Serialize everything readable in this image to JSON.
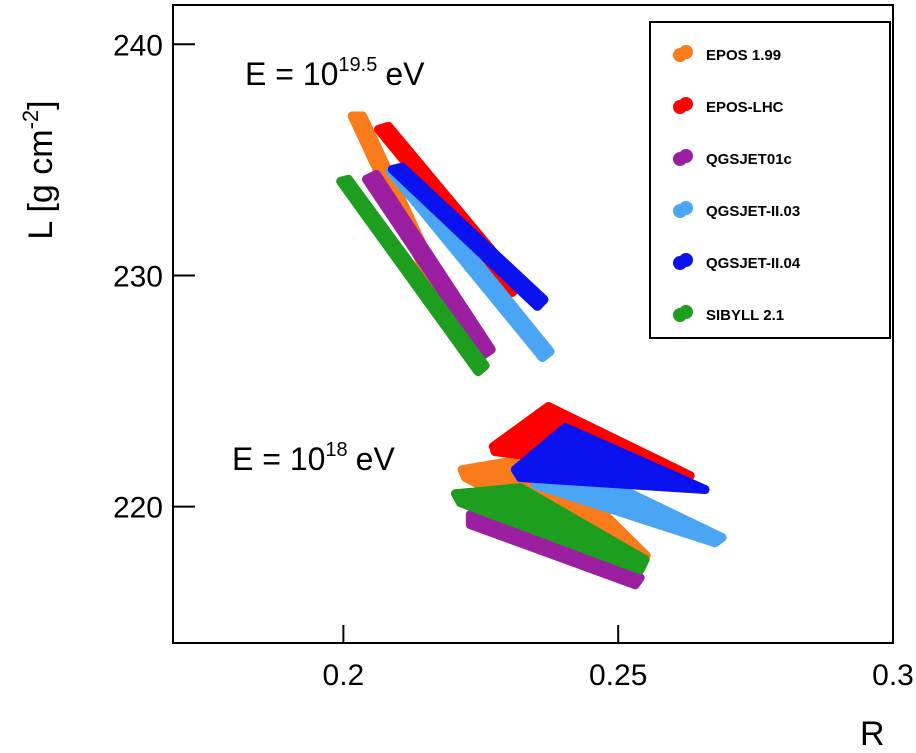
{
  "chart_data": {
    "type": "polygon",
    "x_label": "R",
    "y_label": [
      "L [g cm",
      "-2",
      "]"
    ],
    "annotations": [
      [
        "E = 10",
        "19.5",
        "eV"
      ],
      [
        "E = 10",
        "18",
        "eV"
      ]
    ],
    "xlim": [
      0.169,
      0.3
    ],
    "xticks": [
      0.2,
      0.25,
      0.3
    ],
    "ylim": [
      214.1,
      241.7
    ],
    "yticks": [
      220,
      230,
      240
    ],
    "legend": "top-right",
    "series": [
      {
        "name": "EPOS 1.99",
        "color": "#f97b1c",
        "bands": [
          {
            "x": [
              0.2016,
              0.2035,
              0.2215,
              0.2204
            ],
            "y": [
              236.9,
              236.9,
              227.7,
              227.3
            ]
          },
          {
            "x": [
              0.2216,
              0.2367,
              0.2551,
              0.2533,
              0.2222
            ],
            "y": [
              221.6,
              222.21,
              217.88,
              217.45,
              221.26
            ]
          }
        ]
      },
      {
        "name": "EPOS-LHC",
        "color": "#ff0000",
        "bands": [
          {
            "x": [
              0.2064,
              0.2082,
              0.2322,
              0.2307
            ],
            "y": [
              236.32,
              236.45,
              229.61,
              229.26
            ]
          },
          {
            "x": [
              0.2273,
              0.2373,
              0.2631,
              0.2276
            ],
            "y": [
              222.6,
              224.33,
              221.34,
              222.38
            ]
          }
        ]
      },
      {
        "name": "QGSJET01c",
        "color": "#9b1fa0",
        "bands": [
          {
            "x": [
              0.2042,
              0.206,
              0.2269,
              0.2256
            ],
            "y": [
              234.16,
              234.37,
              226.8,
              226.58
            ]
          },
          {
            "x": [
              0.2231,
              0.2313,
              0.254,
              0.2531,
              0.2231
            ],
            "y": [
              219.65,
              220.74,
              216.93,
              216.62,
              219.22
            ]
          }
        ]
      },
      {
        "name": "QGSJET-II.03",
        "color": "#4aa6f5",
        "bands": [
          {
            "x": [
              0.2085,
              0.2104,
              0.2376,
              0.2362
            ],
            "y": [
              234.5,
              234.68,
              226.71,
              226.45
            ]
          },
          {
            "x": [
              0.2349,
              0.2395,
              0.2689,
              0.2676,
              0.2349
            ],
            "y": [
              221.6,
              222.03,
              218.66,
              218.44,
              220.95
            ]
          }
        ]
      },
      {
        "name": "QGSJET-II.04",
        "color": "#0a12f0",
        "bands": [
          {
            "x": [
              0.2089,
              0.2107,
              0.2365,
              0.2353
            ],
            "y": [
              234.59,
              234.68,
              228.96,
              228.66
            ]
          },
          {
            "x": [
              0.2313,
              0.2404,
              0.2658,
              0.2322
            ],
            "y": [
              221.6,
              223.42,
              220.74,
              221.26
            ]
          }
        ]
      },
      {
        "name": "SIBYLL 2.1",
        "color": "#1e9e1e",
        "bands": [
          {
            "x": [
              0.1995,
              0.2009,
              0.2258,
              0.2245
            ],
            "y": [
              234.07,
              234.16,
              226.1,
              225.84
            ]
          },
          {
            "x": [
              0.2204,
              0.2322,
              0.2549,
              0.254,
              0.2213
            ],
            "y": [
              220.56,
              220.82,
              217.71,
              217.27,
              220.17
            ]
          }
        ]
      }
    ]
  }
}
